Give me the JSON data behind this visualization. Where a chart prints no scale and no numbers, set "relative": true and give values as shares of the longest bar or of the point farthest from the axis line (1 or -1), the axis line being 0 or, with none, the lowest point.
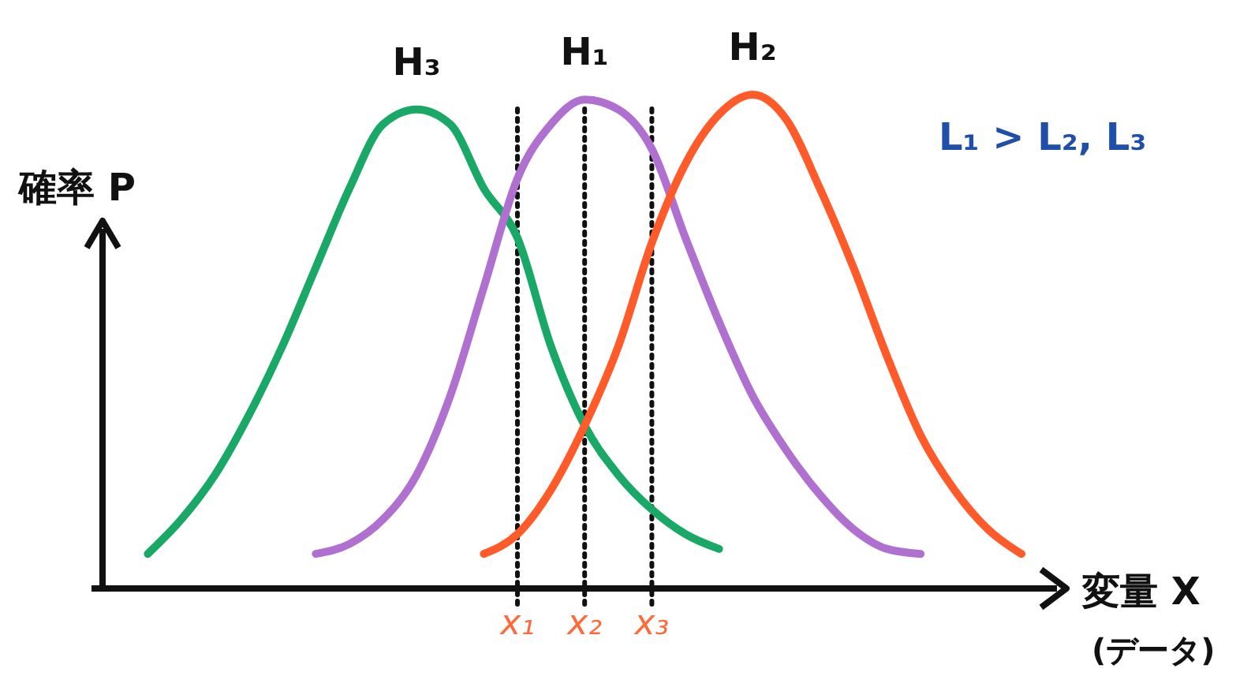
{
  "chart_data": {
    "type": "line",
    "relative": true,
    "xlabel": "変量 X\n(データ)",
    "ylabel": "確率 P",
    "annotations": [
      "L₁ > L₂, L₃"
    ],
    "categories": [
      null,
      null,
      null,
      null,
      null,
      null,
      null,
      null,
      null,
      null,
      null,
      null,
      "x₁",
      null,
      "x₂",
      null,
      "x₃",
      null,
      null,
      null,
      null,
      null,
      null,
      null,
      null,
      null,
      null,
      null
    ],
    "ref_lines": [
      {
        "axis": "x",
        "value": "x₁",
        "color": "#111111",
        "line_style": "dotted"
      },
      {
        "axis": "x",
        "value": "x₂",
        "color": "#111111",
        "line_style": "dotted"
      },
      {
        "axis": "x",
        "value": "x₃",
        "color": "#111111",
        "line_style": "dotted"
      }
    ],
    "legend": false,
    "grid": false,
    "marker": "none",
    "line_style": "solid",
    "series": [
      {
        "name": "H₃",
        "color": "#1aa866",
        "values": [
          null,
          0.07,
          0.14,
          0.23,
          0.35,
          0.49,
          0.65,
          0.81,
          0.94,
          0.97,
          0.94,
          0.81,
          0.71,
          0.49,
          0.33,
          0.23,
          0.16,
          0.11,
          0.08,
          null,
          null,
          null,
          null,
          null,
          null,
          null,
          null,
          null
        ]
      },
      {
        "name": "H₁",
        "color": "#b070d0",
        "values": [
          null,
          null,
          null,
          null,
          null,
          null,
          0.07,
          0.09,
          0.14,
          0.23,
          0.39,
          0.61,
          0.83,
          0.94,
          0.99,
          0.97,
          0.89,
          0.71,
          0.54,
          0.39,
          0.28,
          0.19,
          0.12,
          0.08,
          0.07,
          null,
          null,
          null
        ]
      },
      {
        "name": "H₂",
        "color": "#ff5a2a",
        "values": [
          null,
          null,
          null,
          null,
          null,
          null,
          null,
          null,
          null,
          null,
          null,
          0.07,
          0.11,
          0.2,
          0.33,
          0.49,
          0.7,
          0.86,
          0.96,
          1,
          0.95,
          0.81,
          0.65,
          0.47,
          0.31,
          0.2,
          0.12,
          0.07
        ]
      }
    ]
  }
}
